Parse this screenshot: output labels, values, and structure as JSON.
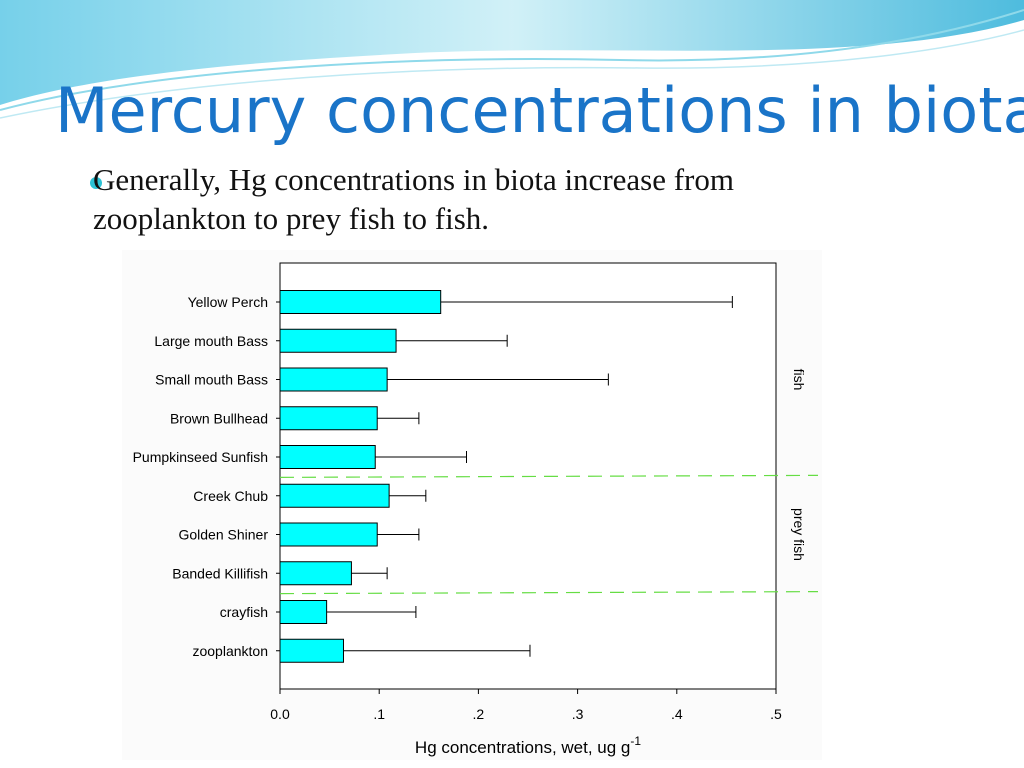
{
  "slide": {
    "title": "Mercury concentrations in biota",
    "bullet": "Generally, Hg concentrations in biota increase from zooplankton to prey fish to fish."
  },
  "theme": {
    "title_color": "#1a74c8",
    "bullet_color": "#2cc3d6",
    "bar_color": "#00ffff",
    "divider_color": "#66dd44"
  },
  "chart_data": {
    "type": "bar",
    "orientation": "horizontal",
    "categories": [
      "Yellow Perch",
      "Large mouth Bass",
      "Small mouth Bass",
      "Brown Bullhead",
      "Pumpkinseed Sunfish",
      "Creek Chub",
      "Golden Shiner",
      "Banded Killifish",
      "crayfish",
      "zooplankton"
    ],
    "values": [
      0.162,
      0.117,
      0.108,
      0.098,
      0.096,
      0.11,
      0.098,
      0.072,
      0.047,
      0.064
    ],
    "error_upper": [
      0.456,
      0.229,
      0.331,
      0.14,
      0.188,
      0.147,
      0.14,
      0.108,
      0.137,
      0.252
    ],
    "xlabel": "Hg concentrations, wet, ug g",
    "xlabel_superscript": "-1",
    "xlim": [
      0,
      0.5
    ],
    "xticks": [
      0,
      0.1,
      0.2,
      0.3,
      0.4,
      0.5
    ],
    "xtick_labels": [
      "0.0",
      ".1",
      ".2",
      ".3",
      ".4",
      ".5"
    ],
    "groups": [
      {
        "label": "fish",
        "categories": [
          "Yellow Perch",
          "Large mouth Bass",
          "Small mouth Bass",
          "Brown Bullhead",
          "Pumpkinseed Sunfish"
        ]
      },
      {
        "label": "prey fish",
        "categories": [
          "Creek Chub",
          "Golden Shiner",
          "Banded Killifish"
        ]
      }
    ]
  }
}
